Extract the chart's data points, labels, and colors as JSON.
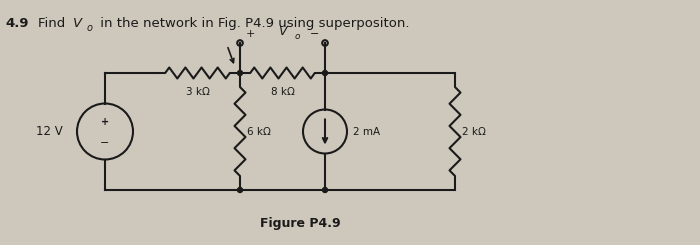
{
  "bg_color": "#cec8bc",
  "line_color": "#1a1a1a",
  "resistor_3k_label": "3 kΩ",
  "resistor_8k_label": "8 kΩ",
  "resistor_6k_label": "6 kΩ",
  "resistor_2k_label": "2 kΩ",
  "voltage_label": "12 V",
  "current_label": "2 mA",
  "figure_label": "Figure P4.9",
  "title_number": "4.9",
  "title_body": "  Find ",
  "title_V": "V",
  "title_o": "o",
  "title_rest": " in the network in Fig. P4.9 using superpositon.",
  "vo_plus": "+",
  "vo_minus": "−",
  "vo_V": "V",
  "vo_o": "o"
}
